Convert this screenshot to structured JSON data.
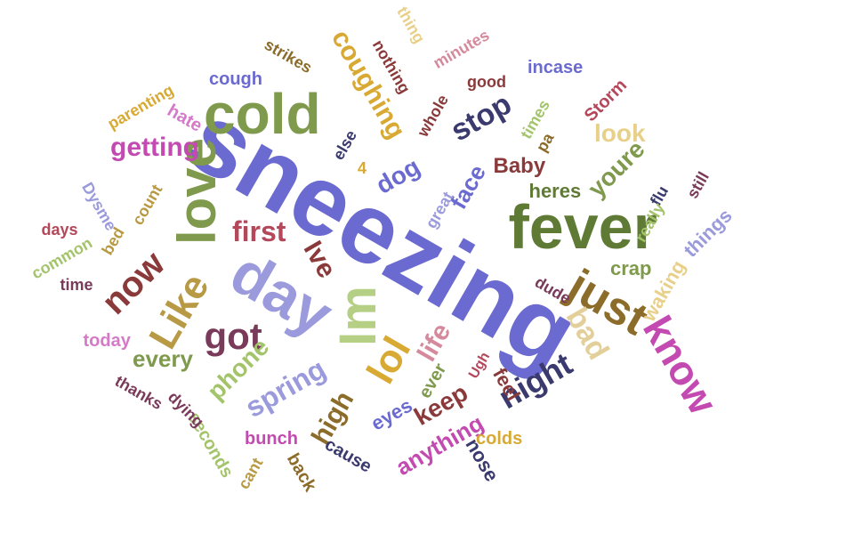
{
  "palette": {
    "purple": "#6a6ad0",
    "olive": "#7f9a4d",
    "green": "#5f7a35",
    "gold": "#d8a933",
    "mustard": "#b89a45",
    "tan": "#e8d08a",
    "beige": "#e3cf9a",
    "rose": "#d48a9c",
    "red": "#b5475a",
    "maroon": "#8a3a3a",
    "brown": "#8c6c2a",
    "plum": "#7a3a5a",
    "navy": "#3a3a6e",
    "lavender": "#9a9adc",
    "pink": "#d47ac8",
    "lightgreen": "#b5cf85",
    "lime": "#a3c46a",
    "orange": "#d06a3a",
    "magenta": "#c34ab0",
    "grey": "#888888"
  },
  "words": [
    {
      "text": "sneezing",
      "color": "purple"
    },
    {
      "text": "fever",
      "color": "green"
    },
    {
      "text": "cold",
      "color": "olive"
    },
    {
      "text": "love",
      "color": "olive"
    },
    {
      "text": "day",
      "color": "lavender"
    },
    {
      "text": "Im",
      "color": "lightgreen"
    },
    {
      "text": "just",
      "color": "brown"
    },
    {
      "text": "know",
      "color": "magenta"
    },
    {
      "text": "Like",
      "color": "mustard"
    },
    {
      "text": "lol",
      "color": "gold"
    },
    {
      "text": "got",
      "color": "plum"
    },
    {
      "text": "now",
      "color": "maroon"
    },
    {
      "text": "night",
      "color": "navy"
    },
    {
      "text": "bad",
      "color": "beige"
    },
    {
      "text": "stop",
      "color": "navy"
    },
    {
      "text": "coughing",
      "color": "gold"
    },
    {
      "text": "getting",
      "color": "magenta"
    },
    {
      "text": "first",
      "color": "red"
    },
    {
      "text": "spring",
      "color": "lavender"
    },
    {
      "text": "Ive",
      "color": "maroon"
    },
    {
      "text": "life",
      "color": "rose"
    },
    {
      "text": "high",
      "color": "brown"
    },
    {
      "text": "keep",
      "color": "maroon"
    },
    {
      "text": "phone",
      "color": "lime"
    },
    {
      "text": "every",
      "color": "olive"
    },
    {
      "text": "dog",
      "color": "purple"
    },
    {
      "text": "youre",
      "color": "olive"
    },
    {
      "text": "look",
      "color": "tan"
    },
    {
      "text": "Baby",
      "color": "maroon"
    },
    {
      "text": "face",
      "color": "purple"
    },
    {
      "text": "anything",
      "color": "magenta"
    },
    {
      "text": "heres",
      "color": "green"
    },
    {
      "text": "crap",
      "color": "olive"
    },
    {
      "text": "waking",
      "color": "tan"
    },
    {
      "text": "things",
      "color": "lavender"
    },
    {
      "text": "feel",
      "color": "maroon"
    },
    {
      "text": "ever",
      "color": "olive"
    },
    {
      "text": "nose",
      "color": "navy"
    },
    {
      "text": "eyes",
      "color": "purple"
    },
    {
      "text": "colds",
      "color": "gold"
    },
    {
      "text": "cause",
      "color": "navy"
    },
    {
      "text": "back",
      "color": "brown"
    },
    {
      "text": "bunch",
      "color": "magenta"
    },
    {
      "text": "cant",
      "color": "mustard"
    },
    {
      "text": "seconds",
      "color": "lime"
    },
    {
      "text": "dying",
      "color": "plum"
    },
    {
      "text": "thanks",
      "color": "plum"
    },
    {
      "text": "today",
      "color": "pink"
    },
    {
      "text": "time",
      "color": "plum"
    },
    {
      "text": "common",
      "color": "lime"
    },
    {
      "text": "days",
      "color": "red"
    },
    {
      "text": "bed",
      "color": "mustard"
    },
    {
      "text": "count",
      "color": "mustard"
    },
    {
      "text": "Dysme",
      "color": "lavender"
    },
    {
      "text": "parenting",
      "color": "gold"
    },
    {
      "text": "hate",
      "color": "pink"
    },
    {
      "text": "cough",
      "color": "purple"
    },
    {
      "text": "strikes",
      "color": "brown"
    },
    {
      "text": "nothing",
      "color": "maroon"
    },
    {
      "text": "thing",
      "color": "tan"
    },
    {
      "text": "minutes",
      "color": "rose"
    },
    {
      "text": "whole",
      "color": "maroon"
    },
    {
      "text": "good",
      "color": "maroon"
    },
    {
      "text": "incase",
      "color": "purple"
    },
    {
      "text": "Storm",
      "color": "red"
    },
    {
      "text": "times",
      "color": "lime"
    },
    {
      "text": "flu",
      "color": "navy"
    },
    {
      "text": "still",
      "color": "plum"
    },
    {
      "text": "really",
      "color": "lime"
    },
    {
      "text": "dude",
      "color": "plum"
    },
    {
      "text": "great",
      "color": "lavender"
    },
    {
      "text": "else",
      "color": "navy"
    },
    {
      "text": "4",
      "color": "gold"
    },
    {
      "text": "pa",
      "color": "brown"
    },
    {
      "text": "Ugh",
      "color": "red"
    }
  ]
}
